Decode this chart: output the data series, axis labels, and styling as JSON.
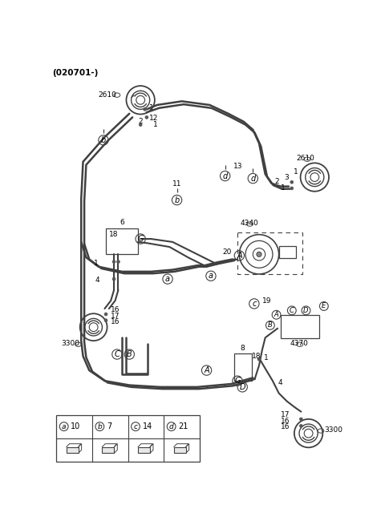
{
  "title": "(020701-)",
  "bg_color": "#ffffff",
  "line_color": "#404040",
  "text_color": "#000000",
  "figsize": [
    4.8,
    6.55
  ],
  "dpi": 100,
  "legend_items": [
    {
      "label": "a",
      "num": "10"
    },
    {
      "label": "b",
      "num": "7"
    },
    {
      "label": "c",
      "num": "14"
    },
    {
      "label": "d",
      "num": "21"
    }
  ]
}
